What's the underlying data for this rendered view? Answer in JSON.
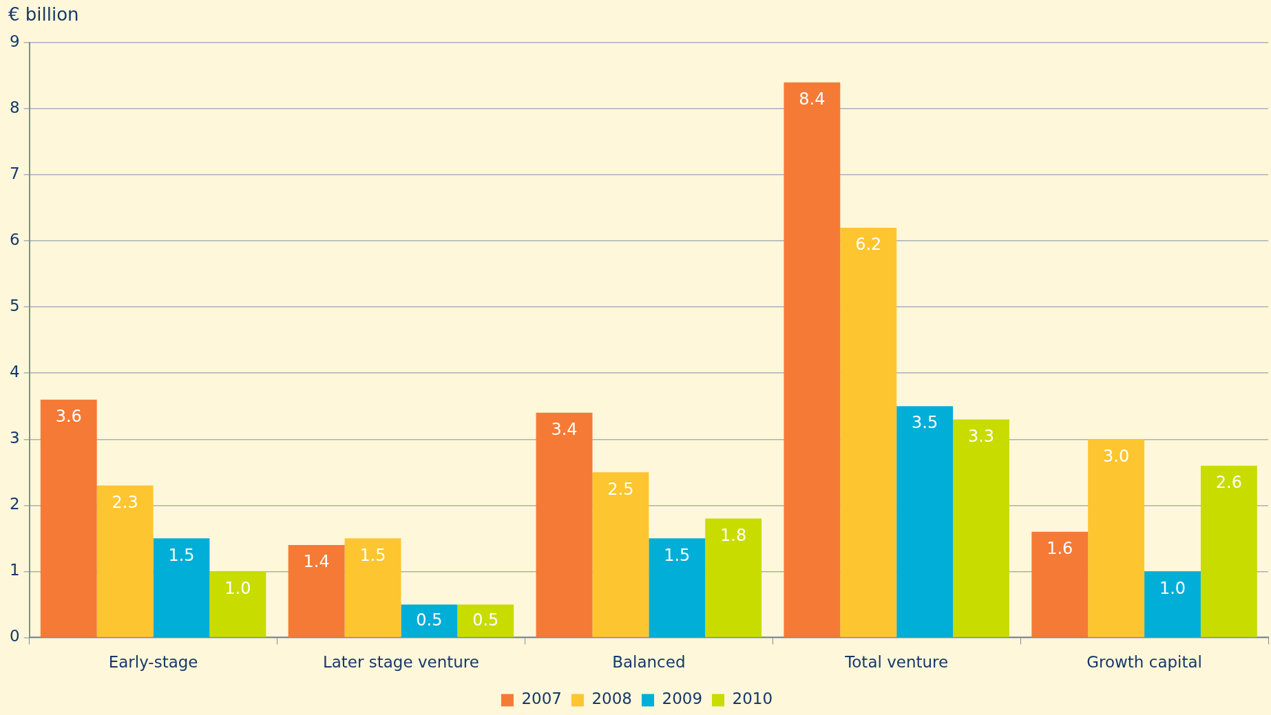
{
  "chart_data": {
    "type": "bar",
    "ylabel": "€ billion",
    "categories": [
      "Early-stage",
      "Later stage venture",
      "Balanced",
      "Total venture",
      "Growth capital"
    ],
    "series": [
      {
        "name": "2007",
        "color": "#f47a36",
        "values": [
          3.6,
          1.4,
          3.4,
          8.4,
          1.6
        ],
        "value_labels": [
          "3.6",
          "1.4",
          "3.4",
          "8.4",
          "1.6"
        ]
      },
      {
        "name": "2008",
        "color": "#fdc530",
        "values": [
          2.3,
          1.5,
          2.5,
          6.2,
          3.0
        ],
        "value_labels": [
          "2.3",
          "1.5",
          "2.5",
          "6.2",
          "3.0"
        ]
      },
      {
        "name": "2009",
        "color": "#00aed8",
        "values": [
          1.5,
          0.5,
          1.5,
          3.5,
          1.0
        ],
        "value_labels": [
          "1.5",
          "0.5",
          "1.5",
          "3.5",
          "1.0"
        ]
      },
      {
        "name": "2010",
        "color": "#c8dc00",
        "values": [
          1.0,
          0.5,
          1.8,
          3.3,
          2.6
        ],
        "value_labels": [
          "1.0",
          "0.5",
          "1.8",
          "3.3",
          "2.6"
        ]
      }
    ],
    "ylim": [
      0,
      9
    ],
    "yticks": [
      0,
      1,
      2,
      3,
      4,
      5,
      6,
      7,
      8,
      9
    ],
    "grid": "y",
    "legend": "bottom"
  }
}
